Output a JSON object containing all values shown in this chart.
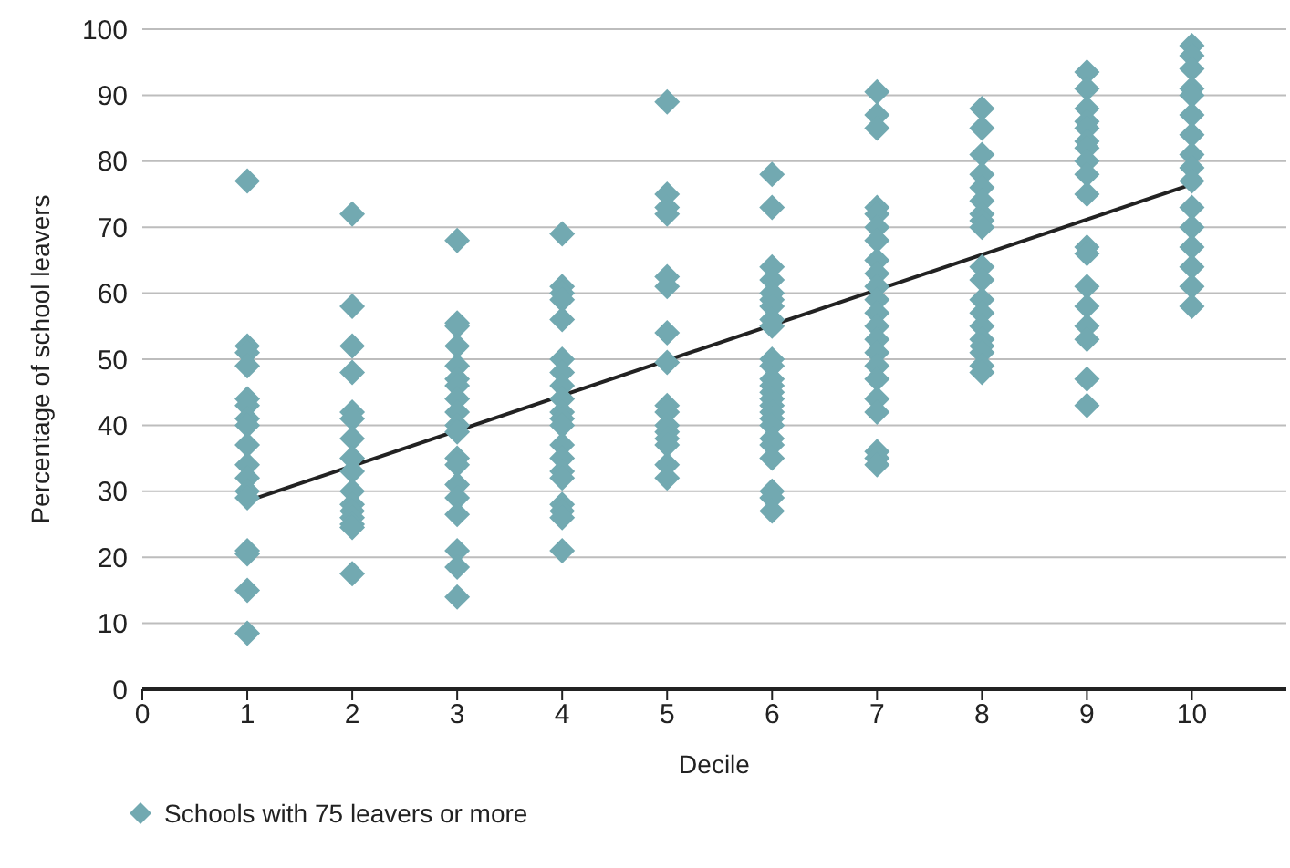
{
  "chart_data": {
    "type": "scatter",
    "xlabel": "Decile",
    "ylabel": "Percentage of school leavers",
    "xlim": [
      0,
      10.9
    ],
    "xticks": [
      0,
      1,
      2,
      3,
      4,
      5,
      6,
      7,
      8,
      9,
      10
    ],
    "ylim": [
      0,
      100
    ],
    "yticks": [
      0,
      10,
      20,
      30,
      40,
      50,
      60,
      70,
      80,
      90,
      100
    ],
    "grid": "y",
    "legend": "bottom left",
    "series": [
      {
        "name": "Schools with 75 leavers or more",
        "color": "#72a9b1",
        "marker": "diamond",
        "x": [
          1,
          1,
          1,
          1,
          1,
          1,
          1,
          1,
          1,
          1,
          1,
          1,
          1,
          1,
          1,
          1,
          1,
          2,
          2,
          2,
          2,
          2,
          2,
          2,
          2,
          2,
          2,
          2,
          2,
          2,
          2,
          2,
          2,
          3,
          3,
          3,
          3,
          3,
          3,
          3,
          3,
          3,
          3,
          3,
          3,
          3,
          3,
          3,
          3,
          3,
          3,
          3,
          4,
          4,
          4,
          4,
          4,
          4,
          4,
          4,
          4,
          4,
          4,
          4,
          4,
          4,
          4,
          4,
          4,
          4,
          4,
          4,
          5,
          5,
          5,
          5,
          5,
          5,
          5,
          5,
          5,
          5,
          5,
          5,
          5,
          5,
          5,
          5,
          6,
          6,
          6,
          6,
          6,
          6,
          6,
          6,
          6,
          6,
          6,
          6,
          6,
          6,
          6,
          6,
          6,
          6,
          6,
          6,
          6,
          6,
          6,
          6,
          6,
          7,
          7,
          7,
          7,
          7,
          7,
          7,
          7,
          7,
          7,
          7,
          7,
          7,
          7,
          7,
          7,
          7,
          7,
          7,
          7,
          7,
          7,
          8,
          8,
          8,
          8,
          8,
          8,
          8,
          8,
          8,
          8,
          8,
          8,
          8,
          8,
          8,
          8,
          8,
          8,
          8,
          9,
          9,
          9,
          9,
          9,
          9,
          9,
          9,
          9,
          9,
          9,
          9,
          9,
          9,
          9,
          9,
          9,
          9,
          10,
          10,
          10,
          10,
          10,
          10,
          10,
          10,
          10,
          10,
          10,
          10,
          10,
          10,
          10,
          10
        ],
        "values": [
          77,
          52,
          51,
          49,
          44,
          43,
          41,
          40,
          37,
          34,
          32,
          30,
          29,
          21,
          20.5,
          15,
          8.5,
          72,
          58,
          52,
          48,
          42,
          41,
          38,
          35,
          33,
          30,
          28,
          27,
          26,
          25,
          24.5,
          17.5,
          68,
          55.5,
          55,
          52,
          49,
          47,
          46,
          44,
          42,
          40,
          39,
          35,
          34,
          31,
          29,
          26.5,
          21,
          18.5,
          14,
          69,
          61,
          60,
          59,
          56,
          50,
          48,
          46,
          44,
          42,
          41,
          40,
          37,
          35,
          33,
          32,
          28,
          27,
          26,
          21,
          89,
          75,
          73,
          72,
          62.5,
          61,
          54,
          49.5,
          43,
          42,
          40,
          39,
          38,
          37,
          34,
          32,
          78,
          73,
          64,
          62,
          60,
          59,
          58,
          56,
          55,
          50,
          49,
          47,
          46,
          45,
          44,
          43,
          42,
          41,
          40,
          38,
          37,
          35,
          30,
          29,
          27,
          90.5,
          87,
          85,
          73,
          72,
          70,
          68,
          65,
          63,
          61,
          59,
          57,
          55,
          53,
          51,
          49,
          47,
          44,
          42,
          36,
          35,
          34,
          88,
          85,
          81,
          78,
          76,
          74,
          72,
          71,
          70,
          64,
          62,
          59,
          57,
          55,
          53,
          52,
          51,
          49,
          48,
          93.5,
          91,
          88,
          86,
          85,
          83,
          82,
          80,
          78,
          75,
          67,
          66,
          61,
          58,
          55,
          53,
          47,
          43,
          97.5,
          96,
          94,
          91,
          90,
          87,
          84,
          81,
          79,
          77,
          73,
          70,
          67,
          64,
          61,
          58
        ]
      },
      {
        "type": "line",
        "marker": "none",
        "color": "#222222",
        "x": [
          1,
          10
        ],
        "values": [
          28.5,
          76.5
        ]
      }
    ]
  }
}
